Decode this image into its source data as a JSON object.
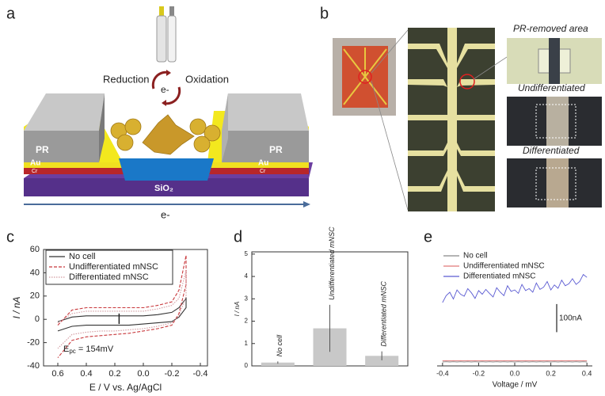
{
  "labels": [
    "a",
    "b",
    "c",
    "d",
    "e"
  ],
  "panel_a": {
    "reduction": "Reduction",
    "oxidation": "Oxidation",
    "electron_top": "e-",
    "pr_left": "PR",
    "pr_right": "PR",
    "au_left": "Au",
    "au_right": "Au",
    "cr_left": "Cr",
    "cr_right": "Cr",
    "substrate": "SiO₂",
    "electron_bottom": "e-"
  },
  "panel_b": {
    "pr_removed": "PR-removed area",
    "undifferentiated": "Undifferentiated",
    "differentiated": "Differentiated"
  },
  "chart_data": [
    {
      "type": "line",
      "ylabel": "I / nA",
      "xlabel": "E / V vs. Ag/AgCl",
      "x": [
        0.6,
        0.5,
        0.4,
        0.3,
        0.2,
        0.1,
        0.0,
        -0.1,
        -0.2,
        -0.25,
        -0.3,
        -0.3,
        -0.25,
        -0.2,
        -0.1,
        0.0,
        0.1,
        0.2,
        0.3,
        0.4,
        0.5,
        0.6
      ],
      "series": [
        {
          "name": "No cell",
          "color": "#333333",
          "dash": "solid",
          "values": [
            -2,
            2,
            3,
            3,
            3,
            3,
            3,
            4,
            6,
            10,
            18,
            10,
            2,
            -2,
            -3,
            -4,
            -5,
            -5,
            -5,
            -5,
            -6,
            -10
          ]
        },
        {
          "name": "Undifferentiated mNSC",
          "color": "#c8383c",
          "dash": "dashed",
          "values": [
            -5,
            8,
            10,
            10,
            10,
            10,
            10,
            12,
            15,
            25,
            55,
            30,
            5,
            -5,
            -8,
            -10,
            -12,
            -13,
            -14,
            -15,
            -18,
            -33
          ]
        },
        {
          "name": "Differentiated mNSC",
          "color": "#d29aa0",
          "dash": "dotted",
          "values": [
            -3,
            5,
            7,
            7,
            7,
            7,
            7,
            9,
            12,
            18,
            42,
            20,
            3,
            -3,
            -6,
            -8,
            -9,
            -10,
            -10,
            -11,
            -13,
            -25
          ]
        }
      ],
      "xlim": [
        0.7,
        -0.45
      ],
      "xticks": [
        0.6,
        0.4,
        0.2,
        {
          "value": 0,
          "label": "0.0"
        },
        -0.2,
        -0.4
      ],
      "ylim": [
        -40,
        60
      ],
      "yticks": [
        -40,
        -20,
        0,
        20,
        40,
        60
      ],
      "annotation": {
        "text": "E",
        "sub": "pc",
        "suffix": " = 154mV",
        "x": 0.17,
        "y_from": 5,
        "y_to": -4
      }
    },
    {
      "type": "bar",
      "ylabel": "I / nA",
      "categories": [
        "No cell",
        "Undifferentiated mNSC",
        "Differentiated mNSC"
      ],
      "values": [
        0.15,
        1.68,
        0.45
      ],
      "errors": [
        0.05,
        1.05,
        0.2
      ],
      "color": "#c8c8c8",
      "ylim": [
        0,
        5.1
      ],
      "yticks": [
        0,
        1,
        2,
        3,
        4,
        5
      ]
    },
    {
      "type": "line",
      "xlabel": "Voltage / mV",
      "x": [
        -0.4,
        -0.38,
        -0.36,
        -0.34,
        -0.32,
        -0.3,
        -0.28,
        -0.26,
        -0.24,
        -0.22,
        -0.2,
        -0.18,
        -0.16,
        -0.14,
        -0.12,
        -0.1,
        -0.08,
        -0.06,
        -0.04,
        -0.02,
        0,
        0.02,
        0.04,
        0.06,
        0.08,
        0.1,
        0.12,
        0.14,
        0.16,
        0.18,
        0.2,
        0.22,
        0.24,
        0.26,
        0.28,
        0.3,
        0.32,
        0.34,
        0.36,
        0.38,
        0.4
      ],
      "series": [
        {
          "name": "No cell",
          "color": "#888888",
          "dash": "solid",
          "values": [
            14,
            15,
            14,
            15,
            14,
            15,
            14,
            15,
            14,
            15,
            14,
            15,
            14,
            15,
            14,
            15,
            14,
            15,
            14,
            15,
            14,
            15,
            14,
            15,
            14,
            15,
            14,
            15,
            14,
            15,
            14,
            15,
            14,
            15,
            14,
            15,
            14,
            15,
            14,
            15,
            14
          ]
        },
        {
          "name": "Undifferentiated mNSC",
          "color": "#e07878",
          "dash": "solid",
          "values": [
            18,
            19,
            18,
            19,
            18,
            19,
            18,
            19,
            18,
            19,
            18,
            19,
            18,
            19,
            18,
            19,
            18,
            19,
            18,
            19,
            18,
            19,
            18,
            19,
            18,
            19,
            18,
            19,
            18,
            19,
            18,
            19,
            18,
            19,
            18,
            19,
            18,
            19,
            18,
            19,
            18
          ]
        },
        {
          "name": "Differentiated mNSC",
          "color": "#5a5ad2",
          "dash": "solid",
          "values": [
            225,
            250,
            262,
            238,
            270,
            255,
            248,
            275,
            260,
            240,
            268,
            255,
            272,
            258,
            245,
            278,
            262,
            250,
            285,
            265,
            270,
            258,
            290,
            268,
            275,
            262,
            295,
            272,
            280,
            300,
            270,
            288,
            276,
            305,
            285,
            292,
            310,
            290,
            300,
            325,
            315
          ]
        }
      ],
      "xlim": [
        -0.43,
        0.43
      ],
      "xticks": [
        -0.4,
        -0.2,
        {
          "value": 0,
          "label": "0.0"
        },
        0.2,
        0.4
      ],
      "ylim": [
        0,
        400
      ],
      "scale_bar": {
        "value": 100,
        "label": "100nA"
      }
    }
  ]
}
